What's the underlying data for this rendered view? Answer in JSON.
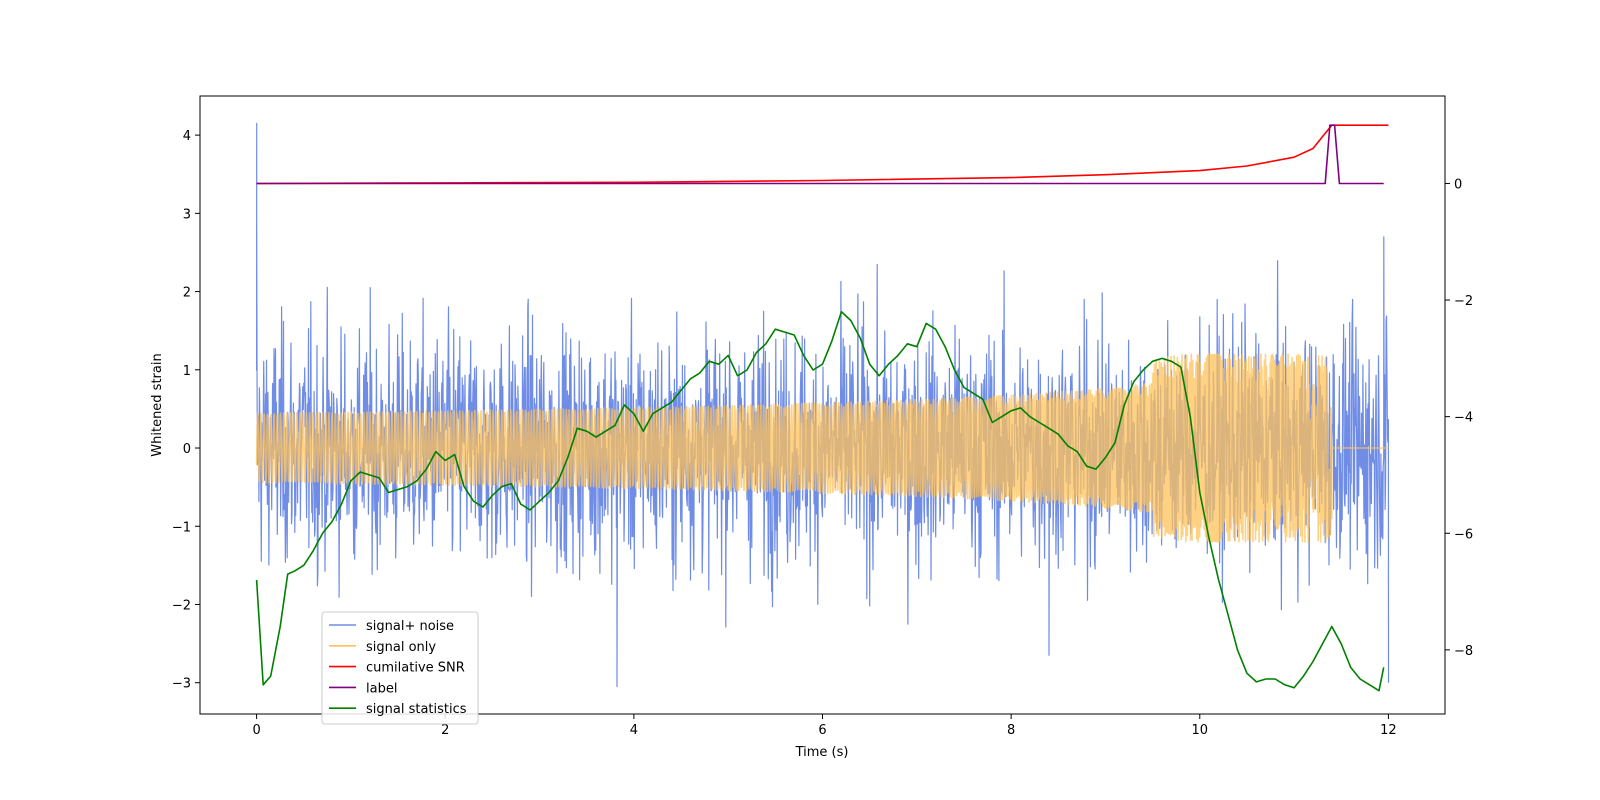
{
  "chart_data": {
    "type": "line",
    "title": "",
    "xlabel": "Time (s)",
    "ylabel": "Whitened strain",
    "y2label": "",
    "xlim": [
      -0.6,
      12.6
    ],
    "ylim": [
      -3.4,
      4.5
    ],
    "y2lim": [
      -9.1,
      1.5
    ],
    "xticks": [
      0,
      2,
      4,
      6,
      8,
      10,
      12
    ],
    "yticks": [
      -3,
      -2,
      -1,
      0,
      1,
      2,
      3,
      4
    ],
    "y2ticks": [
      -8,
      -6,
      -4,
      -2,
      0
    ],
    "legend_location": "lower-left",
    "series": [
      {
        "name": "signal+ noise",
        "color": "#6f8de6",
        "axis": "left",
        "kind": "noise-band",
        "x_range": [
          0,
          12
        ],
        "sample_count": 2400,
        "typical_amplitude": 1.2,
        "max": 4.15,
        "min": -3.05,
        "spikes": [
          [
            0.0,
            4.15
          ],
          [
            0.0,
            2.85
          ],
          [
            3.82,
            -3.05
          ],
          [
            8.4,
            -2.65
          ],
          [
            11.95,
            2.7
          ],
          [
            12.0,
            -3.0
          ]
        ]
      },
      {
        "name": "signal only",
        "color": "#ffc15a",
        "axis": "left",
        "kind": "chirp",
        "x_range": [
          0,
          11.4
        ],
        "peak_time": 11.4,
        "peak_amplitude": 1.2,
        "post_peak_value": 0
      },
      {
        "name": "cumilative SNR",
        "color": "#ff0000",
        "axis": "right",
        "x": [
          0,
          2,
          4,
          6,
          8,
          9,
          10,
          10.5,
          11,
          11.2,
          11.3,
          11.4,
          12
        ],
        "values": [
          0,
          0.01,
          0.02,
          0.05,
          0.1,
          0.15,
          0.22,
          0.3,
          0.45,
          0.6,
          0.8,
          1.0,
          1.0
        ]
      },
      {
        "name": "label",
        "color": "#800080",
        "axis": "right",
        "x": [
          0,
          11.33,
          11.38,
          11.43,
          11.48,
          11.95
        ],
        "values": [
          0,
          0,
          1.0,
          1.0,
          0,
          0
        ]
      },
      {
        "name": "signal statistics",
        "color": "#008000",
        "axis": "right",
        "x": [
          0,
          0.07,
          0.15,
          0.25,
          0.33,
          0.4,
          0.5,
          0.6,
          0.7,
          0.8,
          0.9,
          1.0,
          1.1,
          1.2,
          1.3,
          1.4,
          1.5,
          1.6,
          1.7,
          1.8,
          1.9,
          2.0,
          2.1,
          2.2,
          2.3,
          2.4,
          2.5,
          2.6,
          2.7,
          2.8,
          2.9,
          3.0,
          3.1,
          3.2,
          3.3,
          3.4,
          3.5,
          3.6,
          3.7,
          3.8,
          3.9,
          4.0,
          4.1,
          4.2,
          4.3,
          4.4,
          4.5,
          4.6,
          4.7,
          4.8,
          4.9,
          5.0,
          5.1,
          5.2,
          5.3,
          5.4,
          5.5,
          5.6,
          5.7,
          5.8,
          5.9,
          6.0,
          6.1,
          6.2,
          6.3,
          6.4,
          6.5,
          6.6,
          6.7,
          6.8,
          6.9,
          7.0,
          7.1,
          7.2,
          7.3,
          7.4,
          7.5,
          7.6,
          7.7,
          7.8,
          7.9,
          8.0,
          8.1,
          8.2,
          8.3,
          8.4,
          8.5,
          8.6,
          8.7,
          8.8,
          8.9,
          9.0,
          9.1,
          9.2,
          9.3,
          9.4,
          9.5,
          9.6,
          9.7,
          9.8,
          9.9,
          10.0,
          10.1,
          10.2,
          10.3,
          10.4,
          10.5,
          10.6,
          10.7,
          10.8,
          10.9,
          11.0,
          11.1,
          11.2,
          11.3,
          11.4,
          11.5,
          11.6,
          11.7,
          11.8,
          11.9,
          11.95
        ],
        "values": [
          -6.8,
          -8.6,
          -8.45,
          -7.6,
          -6.7,
          -6.65,
          -6.55,
          -6.3,
          -6.0,
          -5.8,
          -5.5,
          -5.1,
          -4.95,
          -5.0,
          -5.05,
          -5.3,
          -5.25,
          -5.2,
          -5.1,
          -4.9,
          -4.6,
          -4.75,
          -4.65,
          -5.2,
          -5.45,
          -5.55,
          -5.35,
          -5.2,
          -5.15,
          -5.5,
          -5.6,
          -5.45,
          -5.3,
          -5.1,
          -4.7,
          -4.2,
          -4.25,
          -4.35,
          -4.25,
          -4.15,
          -3.8,
          -3.95,
          -4.25,
          -3.95,
          -3.85,
          -3.75,
          -3.55,
          -3.35,
          -3.25,
          -3.05,
          -3.1,
          -2.95,
          -3.3,
          -3.2,
          -2.9,
          -2.75,
          -2.5,
          -2.55,
          -2.6,
          -2.95,
          -3.2,
          -3.1,
          -2.7,
          -2.2,
          -2.35,
          -2.65,
          -3.1,
          -3.3,
          -3.1,
          -2.95,
          -2.75,
          -2.8,
          -2.4,
          -2.5,
          -2.8,
          -3.2,
          -3.5,
          -3.6,
          -3.7,
          -4.1,
          -4.0,
          -3.9,
          -3.85,
          -4.0,
          -4.1,
          -4.2,
          -4.3,
          -4.5,
          -4.6,
          -4.85,
          -4.9,
          -4.7,
          -4.45,
          -3.8,
          -3.4,
          -3.2,
          -3.05,
          -3.0,
          -3.05,
          -3.15,
          -4.0,
          -5.3,
          -6.1,
          -6.8,
          -7.4,
          -8.0,
          -8.4,
          -8.55,
          -8.5,
          -8.5,
          -8.6,
          -8.65,
          -8.45,
          -8.2,
          -7.9,
          -7.6,
          -7.9,
          -8.3,
          -8.5,
          -8.6,
          -8.7,
          -8.3
        ]
      }
    ]
  }
}
